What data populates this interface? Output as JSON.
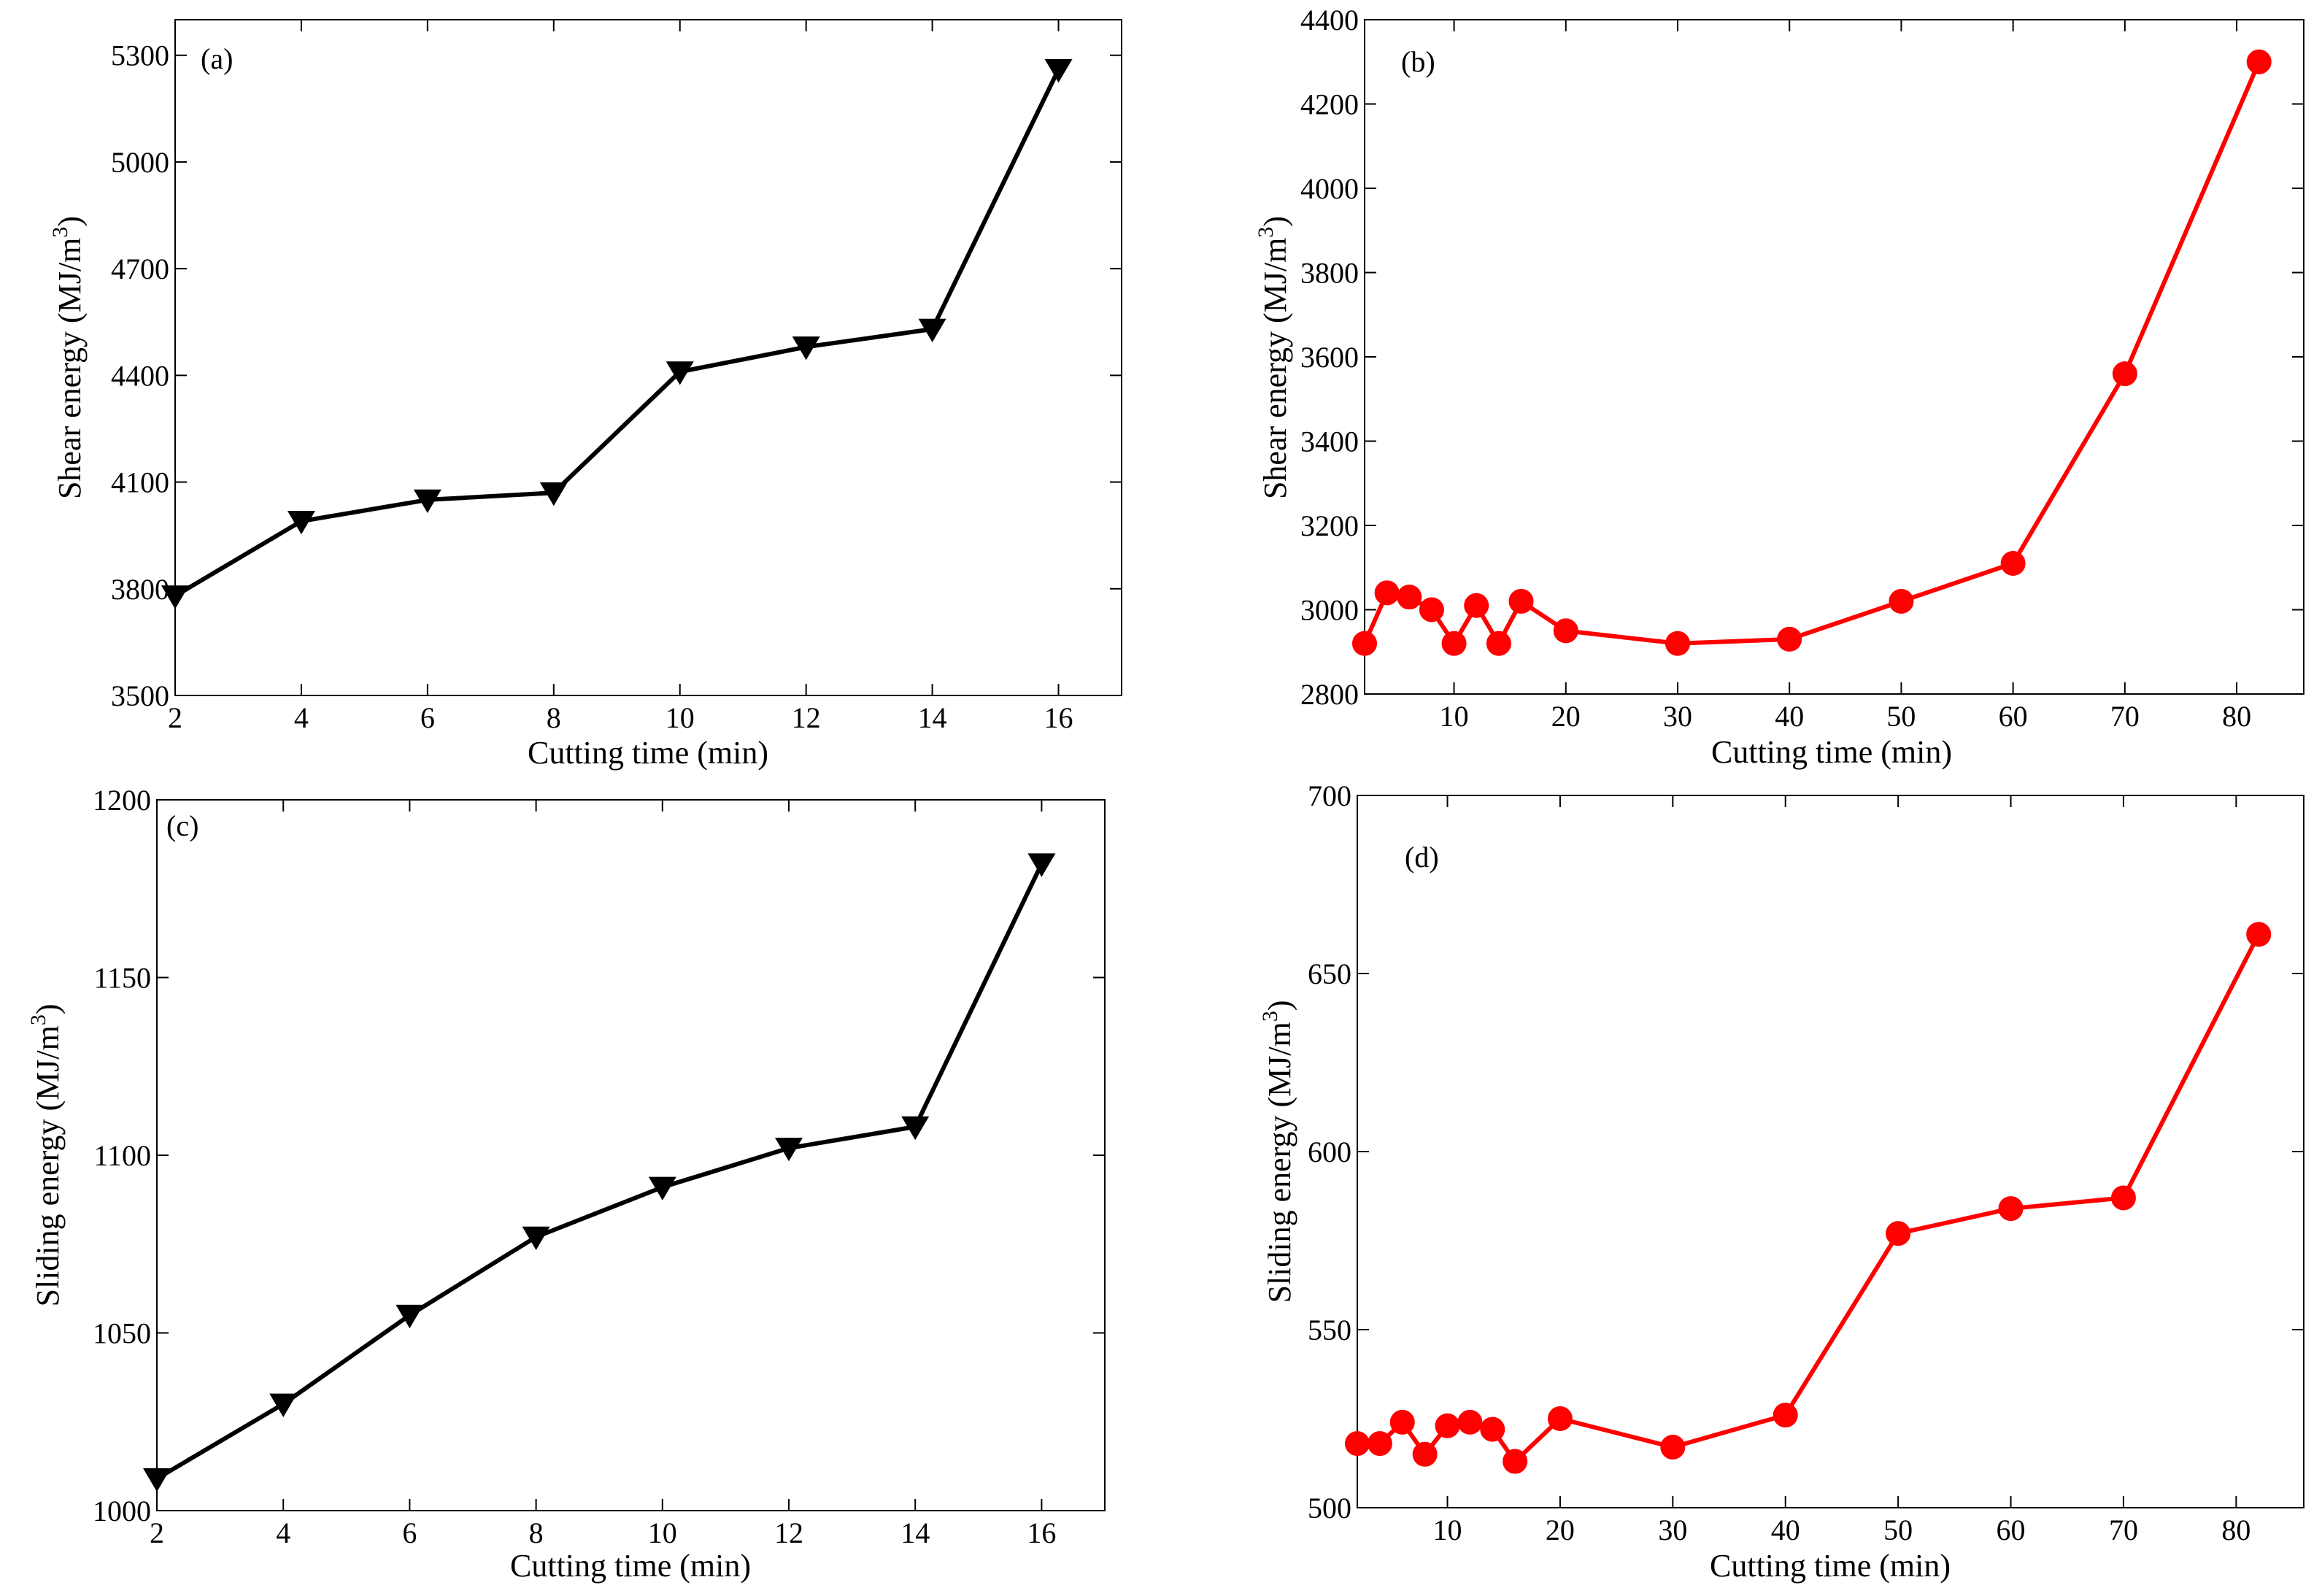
{
  "chart_data": [
    {
      "type": "line",
      "panel_label": "(a)",
      "xlabel": "Cutting time (min)",
      "ylabel": "Shear energy (MJ/m",
      "ylabel_sup": "3",
      "ylabel_end": ")",
      "xlim": [
        2,
        17
      ],
      "ylim": [
        3500,
        5400
      ],
      "xticks": [
        2,
        4,
        6,
        8,
        10,
        12,
        14,
        16
      ],
      "yticks": [
        3500,
        3800,
        4100,
        4400,
        4700,
        5000,
        5300
      ],
      "marker": "triangle-down",
      "color": "#000000",
      "x": [
        2,
        4,
        6,
        8,
        10,
        12,
        14,
        16
      ],
      "y": [
        3780,
        3990,
        4050,
        4070,
        4410,
        4480,
        4530,
        5260
      ]
    },
    {
      "type": "line",
      "panel_label": "(b)",
      "xlabel": "Cutting time (min)",
      "ylabel": "Shear energy (MJ/m",
      "ylabel_sup": "3",
      "ylabel_end": ")",
      "xlim": [
        2,
        86
      ],
      "ylim": [
        2800,
        4400
      ],
      "xticks": [
        10,
        20,
        30,
        40,
        50,
        60,
        70,
        80
      ],
      "yticks": [
        2800,
        3000,
        3200,
        3400,
        3600,
        3800,
        4000,
        4200,
        4400
      ],
      "marker": "circle",
      "color": "#ff0000",
      "x": [
        2,
        4,
        6,
        8,
        10,
        12,
        14,
        16,
        20,
        30,
        40,
        50,
        60,
        70,
        82
      ],
      "y": [
        2920,
        3040,
        3030,
        3000,
        2920,
        3010,
        2920,
        3020,
        2950,
        2920,
        2930,
        3020,
        3110,
        3560,
        4300
      ]
    },
    {
      "type": "line",
      "panel_label": "(c)",
      "xlabel": "Cutting time (min)",
      "ylabel": "Sliding energy (MJ/m",
      "ylabel_sup": "3",
      "ylabel_end": ")",
      "xlim": [
        2,
        17
      ],
      "ylim": [
        1000,
        1200
      ],
      "xticks": [
        2,
        4,
        6,
        8,
        10,
        12,
        14,
        16
      ],
      "yticks": [
        1000,
        1050,
        1100,
        1150,
        1200
      ],
      "marker": "triangle-down",
      "color": "#000000",
      "x": [
        2,
        4,
        6,
        8,
        10,
        12,
        14,
        16
      ],
      "y": [
        1009,
        1030,
        1055,
        1077,
        1091,
        1102,
        1108,
        1182
      ]
    },
    {
      "type": "line",
      "panel_label": "(d)",
      "xlabel": "Cutting time (min)",
      "ylabel": "Sliding energy (MJ/m",
      "ylabel_sup": "3",
      "ylabel_end": ")",
      "xlim": [
        2,
        86
      ],
      "ylim": [
        500,
        700
      ],
      "xticks": [
        10,
        20,
        30,
        40,
        50,
        60,
        70,
        80
      ],
      "yticks": [
        500,
        550,
        600,
        650,
        700
      ],
      "marker": "circle",
      "color": "#ff0000",
      "x": [
        2,
        4,
        6,
        8,
        10,
        12,
        14,
        16,
        20,
        30,
        40,
        50,
        60,
        70,
        82
      ],
      "y": [
        518,
        518,
        524,
        515,
        523,
        524,
        522,
        513,
        525,
        517,
        526,
        577,
        584,
        587,
        661
      ]
    }
  ]
}
